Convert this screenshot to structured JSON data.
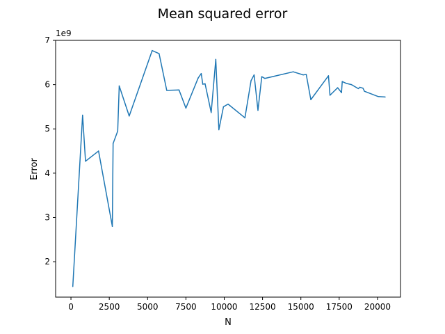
{
  "chart_data": {
    "type": "line",
    "title": "Mean squared error",
    "xlabel": "N",
    "ylabel": "Error",
    "y_offset_label": "1e9",
    "xlim": [
      -1000,
      21500
    ],
    "ylim": [
      1.2,
      7.0
    ],
    "xticks": [
      0,
      2500,
      5000,
      7500,
      10000,
      12500,
      15000,
      17500,
      20000
    ],
    "xtick_labels": [
      "0",
      "2500",
      "5000",
      "7500",
      "10000",
      "12500",
      "15000",
      "17500",
      "20000"
    ],
    "yticks": [
      2,
      3,
      4,
      5,
      6,
      7
    ],
    "ytick_labels": [
      "2",
      "3",
      "4",
      "5",
      "6",
      "7"
    ],
    "grid": false,
    "legend": "none",
    "series": [
      {
        "color": "#1f77b4",
        "x": [
          120,
          760,
          950,
          1800,
          2700,
          2750,
          3050,
          3150,
          3800,
          5300,
          5750,
          6250,
          7050,
          7500,
          8300,
          8500,
          8600,
          8750,
          9150,
          9450,
          9650,
          9950,
          10250,
          11350,
          11750,
          11950,
          12200,
          12450,
          12650,
          14500,
          15150,
          15350,
          15650,
          16800,
          16900,
          17400,
          17650,
          17700,
          17950,
          18300,
          18750,
          18850,
          19050,
          19150,
          20050,
          20500
        ],
        "y": [
          1.44,
          5.31,
          4.27,
          4.5,
          2.8,
          4.67,
          4.95,
          5.97,
          5.29,
          6.77,
          6.7,
          5.87,
          5.88,
          5.47,
          6.15,
          6.25,
          6.01,
          6.02,
          5.37,
          6.57,
          4.98,
          5.5,
          5.56,
          5.25,
          6.09,
          6.22,
          5.42,
          6.18,
          6.14,
          6.29,
          6.22,
          6.23,
          5.66,
          6.2,
          5.76,
          5.93,
          5.82,
          6.07,
          6.03,
          6.0,
          5.91,
          5.94,
          5.92,
          5.85,
          5.73,
          5.72
        ]
      }
    ]
  }
}
